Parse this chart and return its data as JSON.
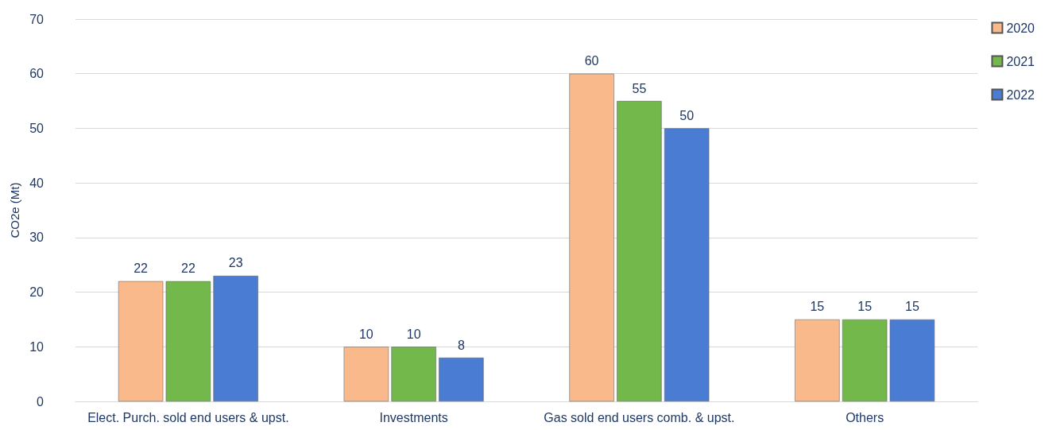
{
  "chart_data": {
    "type": "bar",
    "ylabel": "CO2e (Mt)",
    "categories": [
      "Elect. Purch. sold end users & upst.",
      "Investments",
      "Gas sold end users comb. & upst.",
      "Others"
    ],
    "series": [
      {
        "name": "2020",
        "color": "#f9b98a",
        "values": [
          22,
          10,
          60,
          15
        ]
      },
      {
        "name": "2021",
        "color": "#72b84a",
        "values": [
          22,
          10,
          55,
          15
        ]
      },
      {
        "name": "2022",
        "color": "#4a7cd4",
        "values": [
          23,
          8,
          50,
          15
        ]
      }
    ],
    "ylim": [
      0,
      70
    ],
    "yticks": [
      0,
      10,
      20,
      30,
      40,
      50,
      60,
      70
    ],
    "grid": "y",
    "legend": "top right",
    "data_labels": true
  }
}
